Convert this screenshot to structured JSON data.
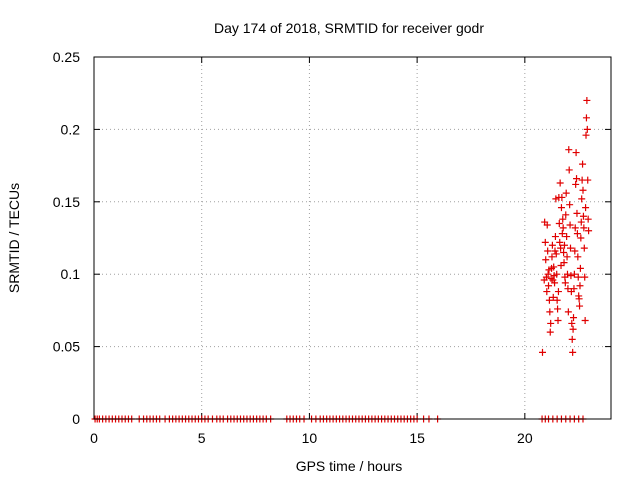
{
  "chart_data": {
    "type": "scatter",
    "title": "Day 174 of 2018, SRMTID for receiver godr",
    "xlabel": "GPS time / hours",
    "ylabel": "SRMTID / TECUs",
    "xlim": [
      0,
      24
    ],
    "ylim": [
      0,
      0.25
    ],
    "x_ticks": [
      0,
      5,
      10,
      15,
      20
    ],
    "y_ticks": [
      0,
      0.05,
      0.1,
      0.15,
      0.2,
      0.25
    ],
    "x_tick_labels": [
      "0",
      "5",
      "10",
      "15",
      "20"
    ],
    "y_tick_labels": [
      "0",
      "0.05",
      "0.1",
      "0.15",
      "0.2",
      "0.25"
    ],
    "grid": true,
    "legend": "none",
    "marker": "plus",
    "point_color": "#e00000",
    "series": [
      {
        "points": [
          [
            0.05,
            0
          ],
          [
            0.15,
            0
          ],
          [
            0.25,
            0
          ],
          [
            0.4,
            0
          ],
          [
            0.55,
            0
          ],
          [
            0.7,
            0
          ],
          [
            0.85,
            0
          ],
          [
            1.0,
            0
          ],
          [
            1.15,
            0
          ],
          [
            1.3,
            0
          ],
          [
            1.45,
            0
          ],
          [
            1.6,
            0
          ],
          [
            1.75,
            0
          ],
          [
            2.1,
            0
          ],
          [
            2.3,
            0
          ],
          [
            2.45,
            0
          ],
          [
            2.6,
            0
          ],
          [
            2.75,
            0
          ],
          [
            2.9,
            0
          ],
          [
            3.05,
            0
          ],
          [
            3.3,
            0
          ],
          [
            3.5,
            0
          ],
          [
            3.65,
            0
          ],
          [
            3.8,
            0
          ],
          [
            3.95,
            0
          ],
          [
            4.1,
            0
          ],
          [
            4.25,
            0
          ],
          [
            4.4,
            0
          ],
          [
            4.55,
            0
          ],
          [
            4.7,
            0
          ],
          [
            4.85,
            0
          ],
          [
            5.0,
            0
          ],
          [
            5.15,
            0
          ],
          [
            5.3,
            0
          ],
          [
            5.5,
            0
          ],
          [
            5.7,
            0
          ],
          [
            5.85,
            0
          ],
          [
            6.0,
            0
          ],
          [
            6.2,
            0
          ],
          [
            6.35,
            0
          ],
          [
            6.5,
            0
          ],
          [
            6.65,
            0
          ],
          [
            6.8,
            0
          ],
          [
            6.95,
            0
          ],
          [
            7.1,
            0
          ],
          [
            7.25,
            0
          ],
          [
            7.4,
            0
          ],
          [
            7.55,
            0
          ],
          [
            7.7,
            0
          ],
          [
            7.85,
            0
          ],
          [
            8.0,
            0
          ],
          [
            8.2,
            0
          ],
          [
            8.95,
            0
          ],
          [
            9.1,
            0
          ],
          [
            9.25,
            0
          ],
          [
            9.4,
            0
          ],
          [
            9.55,
            0
          ],
          [
            9.75,
            0
          ],
          [
            10.1,
            0
          ],
          [
            10.3,
            0
          ],
          [
            10.5,
            0
          ],
          [
            10.65,
            0
          ],
          [
            10.8,
            0
          ],
          [
            10.95,
            0
          ],
          [
            11.1,
            0
          ],
          [
            11.25,
            0
          ],
          [
            11.4,
            0
          ],
          [
            11.55,
            0
          ],
          [
            11.7,
            0
          ],
          [
            11.85,
            0
          ],
          [
            12.0,
            0
          ],
          [
            12.15,
            0
          ],
          [
            12.3,
            0
          ],
          [
            12.45,
            0
          ],
          [
            12.6,
            0
          ],
          [
            12.75,
            0
          ],
          [
            12.9,
            0
          ],
          [
            13.05,
            0
          ],
          [
            13.2,
            0
          ],
          [
            13.35,
            0
          ],
          [
            13.5,
            0
          ],
          [
            13.65,
            0
          ],
          [
            13.8,
            0
          ],
          [
            13.95,
            0
          ],
          [
            14.1,
            0
          ],
          [
            14.25,
            0
          ],
          [
            14.4,
            0
          ],
          [
            14.55,
            0
          ],
          [
            14.7,
            0
          ],
          [
            14.85,
            0
          ],
          [
            15.0,
            0
          ],
          [
            15.3,
            0
          ],
          [
            15.55,
            0
          ],
          [
            15.95,
            0
          ],
          [
            20.8,
            0
          ],
          [
            20.95,
            0
          ],
          [
            21.1,
            0
          ],
          [
            21.3,
            0
          ],
          [
            21.5,
            0
          ],
          [
            21.7,
            0
          ],
          [
            21.9,
            0
          ],
          [
            22.1,
            0
          ],
          [
            22.3,
            0
          ],
          [
            22.5,
            0
          ],
          [
            22.7,
            0
          ],
          [
            20.82,
            0.046
          ],
          [
            20.9,
            0.096
          ],
          [
            20.92,
            0.136
          ],
          [
            20.95,
            0.122
          ],
          [
            20.97,
            0.11
          ],
          [
            21.0,
            0.098
          ],
          [
            21.02,
            0.088
          ],
          [
            21.04,
            0.134
          ],
          [
            21.06,
            0.116
          ],
          [
            21.08,
            0.1
          ],
          [
            21.1,
            0.092
          ],
          [
            21.12,
            0.103
          ],
          [
            21.14,
            0.082
          ],
          [
            21.16,
            0.074
          ],
          [
            21.18,
            0.06
          ],
          [
            21.2,
            0.066
          ],
          [
            21.22,
            0.097
          ],
          [
            21.24,
            0.104
          ],
          [
            21.26,
            0.112
          ],
          [
            21.28,
            0.12
          ],
          [
            21.3,
            0.096
          ],
          [
            21.32,
            0.084
          ],
          [
            21.34,
            0.105
          ],
          [
            21.36,
            0.099
          ],
          [
            21.38,
            0.094
          ],
          [
            21.4,
            0.116
          ],
          [
            21.42,
            0.126
          ],
          [
            21.44,
            0.152
          ],
          [
            21.46,
            0.114
          ],
          [
            21.48,
            0.1
          ],
          [
            21.5,
            0.082
          ],
          [
            21.52,
            0.076
          ],
          [
            21.54,
            0.068
          ],
          [
            21.56,
            0.088
          ],
          [
            21.58,
            0.153
          ],
          [
            21.6,
            0.135
          ],
          [
            21.62,
            0.122
          ],
          [
            21.64,
            0.163
          ],
          [
            21.66,
            0.118
          ],
          [
            21.68,
            0.106
          ],
          [
            21.7,
            0.146
          ],
          [
            21.72,
            0.153
          ],
          [
            21.74,
            0.128
          ],
          [
            21.76,
            0.138
          ],
          [
            21.78,
            0.132
          ],
          [
            21.8,
            0.115
          ],
          [
            21.82,
            0.108
          ],
          [
            21.84,
            0.12
          ],
          [
            21.86,
            0.098
          ],
          [
            21.88,
            0.094
          ],
          [
            21.9,
            0.141
          ],
          [
            21.92,
            0.156
          ],
          [
            21.94,
            0.126
          ],
          [
            21.96,
            0.112
          ],
          [
            21.98,
            0.1
          ],
          [
            22.0,
            0.09
          ],
          [
            22.02,
            0.074
          ],
          [
            22.04,
            0.186
          ],
          [
            22.06,
            0.172
          ],
          [
            22.08,
            0.148
          ],
          [
            22.1,
            0.134
          ],
          [
            22.12,
            0.118
          ],
          [
            22.14,
            0.099
          ],
          [
            22.16,
            0.088
          ],
          [
            22.18,
            0.066
          ],
          [
            22.2,
            0.055
          ],
          [
            22.22,
            0.046
          ],
          [
            22.24,
            0.062
          ],
          [
            22.26,
            0.07
          ],
          [
            22.28,
            0.09
          ],
          [
            22.3,
            0.1
          ],
          [
            22.32,
            0.116
          ],
          [
            22.34,
            0.132
          ],
          [
            22.36,
            0.162
          ],
          [
            22.38,
            0.184
          ],
          [
            22.4,
            0.166
          ],
          [
            22.42,
            0.142
          ],
          [
            22.44,
            0.128
          ],
          [
            22.46,
            0.112
          ],
          [
            22.48,
            0.098
          ],
          [
            22.5,
            0.085
          ],
          [
            22.52,
            0.083
          ],
          [
            22.54,
            0.078
          ],
          [
            22.56,
            0.092
          ],
          [
            22.58,
            0.104
          ],
          [
            22.6,
            0.125
          ],
          [
            22.62,
            0.136
          ],
          [
            22.64,
            0.152
          ],
          [
            22.66,
            0.165
          ],
          [
            22.68,
            0.176
          ],
          [
            22.7,
            0.158
          ],
          [
            22.72,
            0.14
          ],
          [
            22.74,
            0.132
          ],
          [
            22.76,
            0.118
          ],
          [
            22.78,
            0.098
          ],
          [
            22.8,
            0.068
          ],
          [
            22.82,
            0.146
          ],
          [
            22.84,
            0.196
          ],
          [
            22.86,
            0.208
          ],
          [
            22.88,
            0.22
          ],
          [
            22.9,
            0.2
          ],
          [
            22.92,
            0.165
          ],
          [
            22.94,
            0.138
          ],
          [
            22.96,
            0.13
          ]
        ]
      }
    ]
  }
}
